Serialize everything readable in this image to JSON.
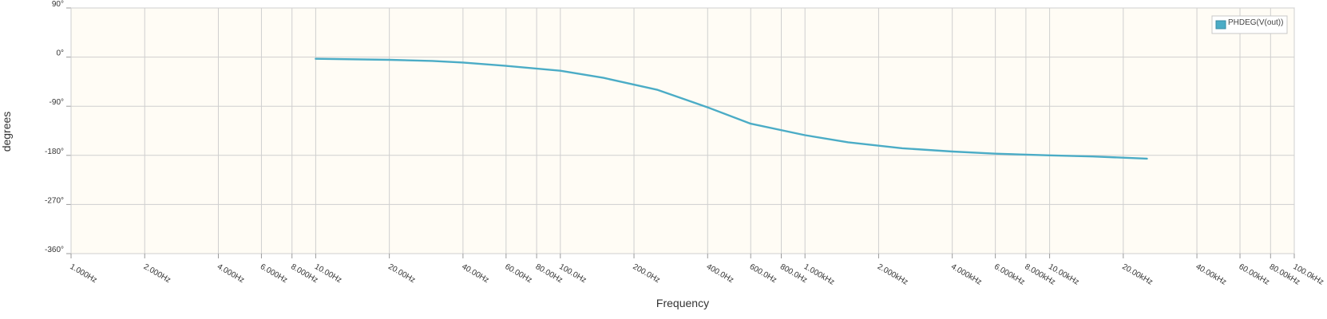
{
  "chart_data": {
    "type": "line",
    "xscale": "log",
    "xlabel": "Frequency",
    "ylabel": "degrees",
    "xlim_hz": [
      1,
      100000
    ],
    "ylim": [
      -360,
      90
    ],
    "grid": true,
    "legend_position": "top-right",
    "yticks": [
      {
        "value": 90,
        "label": "90°"
      },
      {
        "value": 0,
        "label": "0°"
      },
      {
        "value": -90,
        "label": "-90°"
      },
      {
        "value": -180,
        "label": "-180°"
      },
      {
        "value": -270,
        "label": "-270°"
      },
      {
        "value": -360,
        "label": "-360°"
      }
    ],
    "xticks": [
      {
        "value": 1,
        "label": "1.000Hz"
      },
      {
        "value": 2,
        "label": "2.000Hz"
      },
      {
        "value": 4,
        "label": "4.000Hz"
      },
      {
        "value": 6,
        "label": "6.000Hz"
      },
      {
        "value": 8,
        "label": "8.000Hz"
      },
      {
        "value": 10,
        "label": "10.00Hz"
      },
      {
        "value": 20,
        "label": "20.00Hz"
      },
      {
        "value": 40,
        "label": "40.00Hz"
      },
      {
        "value": 60,
        "label": "60.00Hz"
      },
      {
        "value": 80,
        "label": "80.00Hz"
      },
      {
        "value": 100,
        "label": "100.0Hz"
      },
      {
        "value": 200,
        "label": "200.0Hz"
      },
      {
        "value": 400,
        "label": "400.0Hz"
      },
      {
        "value": 600,
        "label": "600.0Hz"
      },
      {
        "value": 800,
        "label": "800.0Hz"
      },
      {
        "value": 1000,
        "label": "1.000kHz"
      },
      {
        "value": 2000,
        "label": "2.000kHz"
      },
      {
        "value": 4000,
        "label": "4.000kHz"
      },
      {
        "value": 6000,
        "label": "6.000kHz"
      },
      {
        "value": 8000,
        "label": "8.000kHz"
      },
      {
        "value": 10000,
        "label": "10.00kHz"
      },
      {
        "value": 20000,
        "label": "20.00kHz"
      },
      {
        "value": 40000,
        "label": "40.00kHz"
      },
      {
        "value": 60000,
        "label": "60.00kHz"
      },
      {
        "value": 80000,
        "label": "80.00kHz"
      },
      {
        "value": 100000,
        "label": "100.0kHz"
      }
    ],
    "series": [
      {
        "name": "PHDEG(V(out))",
        "color": "#4bacc6",
        "x": [
          10,
          20,
          30,
          40,
          60,
          100,
          150,
          250,
          400,
          600,
          1000,
          1500,
          2500,
          4000,
          6000,
          10000,
          15000,
          25000
        ],
        "y": [
          -3,
          -5,
          -7,
          -10,
          -16,
          -25,
          -38,
          -60,
          -92,
          -122,
          -143,
          -156,
          -167,
          -173,
          -177,
          -180,
          -182,
          -186
        ]
      }
    ]
  }
}
